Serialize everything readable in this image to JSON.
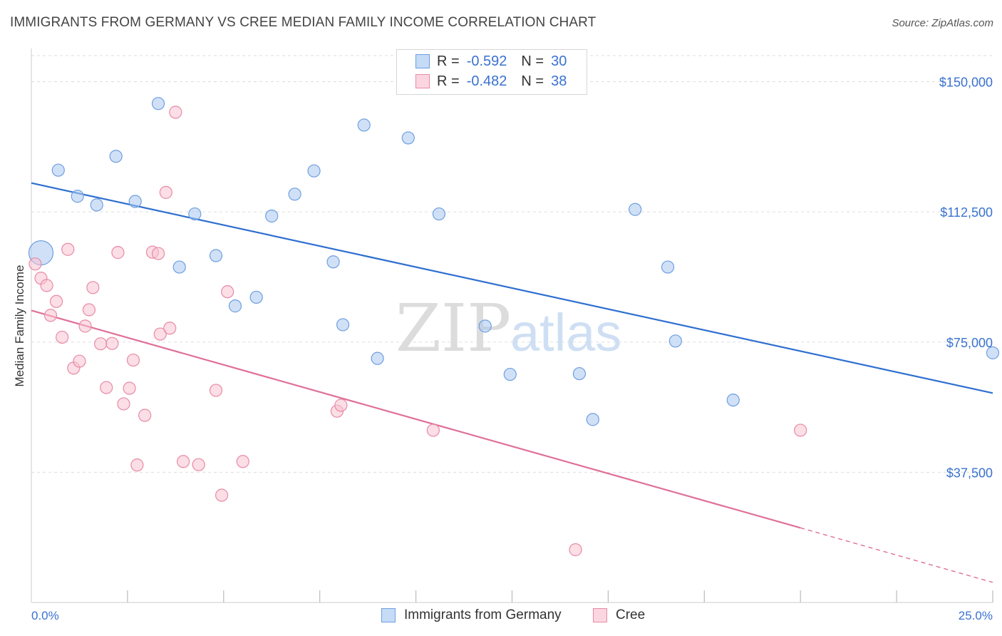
{
  "title": "IMMIGRANTS FROM GERMANY VS CREE MEDIAN FAMILY INCOME CORRELATION CHART",
  "source": "Source: ZipAtlas.com",
  "watermark": {
    "zip": "ZIP",
    "atlas": "atlas"
  },
  "legend": {
    "rows": [
      {
        "r_label": "R =",
        "r_value": "-0.592",
        "n_label": "N =",
        "n_value": "30",
        "color": "#a9c8f0",
        "border": "#6f9ee0"
      },
      {
        "r_label": "R =",
        "r_value": "-0.482",
        "n_label": "N =",
        "n_value": "38",
        "color": "#f7c3d2",
        "border": "#e88aa6"
      }
    ]
  },
  "bottom_legend": [
    {
      "label": "Immigrants from Germany",
      "color": "#c5dbf6",
      "border": "#6f9ee0"
    },
    {
      "label": "Cree",
      "color": "#fbd6e1",
      "border": "#e88aa6"
    }
  ],
  "chart_data": {
    "type": "scatter",
    "xlabel": "",
    "ylabel": "Median Family Income",
    "xlim": [
      0,
      25
    ],
    "ylim": [
      0,
      157500
    ],
    "x_tick_labels": {
      "min": "0.0%",
      "max": "25.0%"
    },
    "y_ticks": [
      {
        "value": 37500,
        "label": "$37,500"
      },
      {
        "value": 75000,
        "label": "$75,000"
      },
      {
        "value": 112500,
        "label": "$112,500"
      },
      {
        "value": 150000,
        "label": "$150,000"
      }
    ],
    "x_minor_ticks": [
      2.5,
      5,
      7.5,
      10,
      12.5,
      15,
      17.5,
      20,
      22.5
    ],
    "grid": true,
    "series": [
      {
        "name": "Immigrants from Germany",
        "color": "#a9c8f0",
        "stroke": "#6f9ee0",
        "trend": {
          "x": [
            0,
            25
          ],
          "y": [
            120800,
            60300
          ],
          "color": "#2e6fd0"
        },
        "points": [
          {
            "x": 0.25,
            "y": 100700,
            "big": true
          },
          {
            "x": 0.7,
            "y": 124500
          },
          {
            "x": 1.2,
            "y": 117000
          },
          {
            "x": 1.7,
            "y": 114500
          },
          {
            "x": 2.2,
            "y": 128500
          },
          {
            "x": 2.7,
            "y": 115500
          },
          {
            "x": 3.3,
            "y": 143700
          },
          {
            "x": 3.85,
            "y": 96600
          },
          {
            "x": 4.25,
            "y": 111900
          },
          {
            "x": 4.8,
            "y": 99900
          },
          {
            "x": 5.3,
            "y": 85400
          },
          {
            "x": 5.85,
            "y": 87900
          },
          {
            "x": 6.25,
            "y": 111300
          },
          {
            "x": 6.85,
            "y": 117600
          },
          {
            "x": 7.35,
            "y": 124300
          },
          {
            "x": 7.85,
            "y": 98100
          },
          {
            "x": 8.1,
            "y": 80000
          },
          {
            "x": 8.65,
            "y": 137500
          },
          {
            "x": 9.0,
            "y": 70300
          },
          {
            "x": 9.8,
            "y": 133800
          },
          {
            "x": 10.6,
            "y": 111900
          },
          {
            "x": 11.8,
            "y": 79600
          },
          {
            "x": 12.45,
            "y": 65700
          },
          {
            "x": 14.25,
            "y": 65900
          },
          {
            "x": 14.6,
            "y": 52700
          },
          {
            "x": 15.7,
            "y": 113200
          },
          {
            "x": 16.55,
            "y": 96600
          },
          {
            "x": 16.75,
            "y": 75300
          },
          {
            "x": 18.25,
            "y": 58300
          },
          {
            "x": 25.0,
            "y": 71900
          }
        ]
      },
      {
        "name": "Cree",
        "color": "#f7c3d2",
        "stroke": "#e88aa6",
        "trend": {
          "x": [
            0,
            20
          ],
          "y": [
            84100,
            21500
          ],
          "color": "#e0709a"
        },
        "trend_dashed": {
          "x": [
            20,
            25
          ],
          "y": [
            21500,
            5800
          ]
        },
        "points": [
          {
            "x": 0.1,
            "y": 97500
          },
          {
            "x": 0.25,
            "y": 93400
          },
          {
            "x": 0.4,
            "y": 91300
          },
          {
            "x": 0.5,
            "y": 82700
          },
          {
            "x": 0.65,
            "y": 86700
          },
          {
            "x": 0.8,
            "y": 76400
          },
          {
            "x": 0.95,
            "y": 101700
          },
          {
            "x": 1.1,
            "y": 67500
          },
          {
            "x": 1.25,
            "y": 69500
          },
          {
            "x": 1.4,
            "y": 79600
          },
          {
            "x": 1.5,
            "y": 84300
          },
          {
            "x": 1.6,
            "y": 90700
          },
          {
            "x": 1.8,
            "y": 74500
          },
          {
            "x": 1.95,
            "y": 61900
          },
          {
            "x": 2.1,
            "y": 74600
          },
          {
            "x": 2.25,
            "y": 100800
          },
          {
            "x": 2.4,
            "y": 57200
          },
          {
            "x": 2.55,
            "y": 61700
          },
          {
            "x": 2.65,
            "y": 69800
          },
          {
            "x": 2.75,
            "y": 39600
          },
          {
            "x": 2.95,
            "y": 53900
          },
          {
            "x": 3.15,
            "y": 100900
          },
          {
            "x": 3.3,
            "y": 100500
          },
          {
            "x": 3.35,
            "y": 77300
          },
          {
            "x": 3.5,
            "y": 118100
          },
          {
            "x": 3.6,
            "y": 79000
          },
          {
            "x": 3.75,
            "y": 141200
          },
          {
            "x": 3.95,
            "y": 40600
          },
          {
            "x": 4.35,
            "y": 39700
          },
          {
            "x": 4.8,
            "y": 61100
          },
          {
            "x": 4.95,
            "y": 30900
          },
          {
            "x": 5.1,
            "y": 89500
          },
          {
            "x": 5.5,
            "y": 40600
          },
          {
            "x": 7.95,
            "y": 55100
          },
          {
            "x": 8.05,
            "y": 56800
          },
          {
            "x": 10.45,
            "y": 49600
          },
          {
            "x": 14.15,
            "y": 15200
          },
          {
            "x": 20.0,
            "y": 49600
          }
        ]
      }
    ]
  }
}
